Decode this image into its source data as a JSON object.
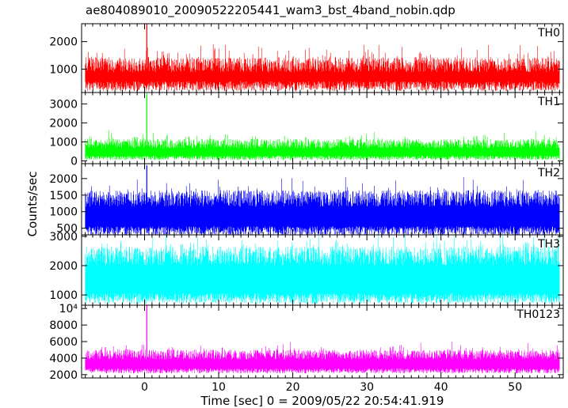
{
  "chart_data": {
    "type": "line",
    "title": "ae804089010_20090522205441_wam3_bst_4band_nobin.qdp",
    "xlabel": "Time [sec] 0 = 2009/05/22 20:54:41.919",
    "ylabel": "Counts/sec",
    "xlim": [
      -8.5,
      56.5
    ],
    "x_ticks": [
      0,
      10,
      20,
      30,
      40,
      50
    ],
    "x_tick_labels": [
      "0",
      "10",
      "20",
      "30",
      "40",
      "50"
    ],
    "panels": [
      {
        "name": "TH0",
        "color": "#ff0000",
        "ylim": [
          150,
          2650
        ],
        "y_ticks": [
          1000,
          2000
        ],
        "y_tick_labels": [
          "1000",
          "2000"
        ],
        "x_range": [
          -8.0,
          56.0
        ],
        "low_envelope": 380,
        "low_spread": 180,
        "high_envelope": 1050,
        "high_spread": 550,
        "spikes": [
          {
            "x": 0.3,
            "y": 2650
          }
        ]
      },
      {
        "name": "TH1",
        "color": "#00ff00",
        "ylim": [
          -150,
          3600
        ],
        "y_ticks": [
          0,
          1000,
          2000,
          3000
        ],
        "y_tick_labels": [
          "0",
          "1000",
          "2000",
          "3000"
        ],
        "x_range": [
          -8.0,
          56.0
        ],
        "low_envelope": 160,
        "low_spread": 120,
        "high_envelope": 800,
        "high_spread": 500,
        "spikes": [
          {
            "x": 0.3,
            "y": 3550
          }
        ]
      },
      {
        "name": "TH2",
        "color": "#0000ff",
        "ylim": [
          300,
          2450
        ],
        "y_ticks": [
          500,
          1000,
          1500,
          2000
        ],
        "y_tick_labels": [
          "500",
          "1000",
          "1500",
          "2000"
        ],
        "x_range": [
          -8.0,
          56.0
        ],
        "low_envelope": 420,
        "low_spread": 140,
        "high_envelope": 1300,
        "high_spread": 500,
        "spikes": [
          {
            "x": 0.3,
            "y": 2400
          }
        ]
      },
      {
        "name": "TH3",
        "color": "#00ffff",
        "ylim": [
          650,
          3050
        ],
        "y_ticks": [
          1000,
          2000,
          3000
        ],
        "y_tick_labels": [
          "1000",
          "2000",
          "3000"
        ],
        "x_range": [
          -8.0,
          56.0
        ],
        "low_envelope": 880,
        "low_spread": 180,
        "high_envelope": 2200,
        "high_spread": 650,
        "spikes": []
      },
      {
        "name": "TH0123",
        "color": "#ff00ff",
        "ylim": [
          1600,
          10400
        ],
        "y_ticks": [
          2000,
          4000,
          6000,
          8000,
          10000
        ],
        "y_tick_labels": [
          "2000",
          "4000",
          "6000",
          "8000",
          "10⁴"
        ],
        "x_range": [
          -8.0,
          56.0
        ],
        "low_envelope": 2450,
        "low_spread": 300,
        "high_envelope": 4200,
        "high_spread": 1200,
        "spikes": [
          {
            "x": 0.3,
            "y": 10400
          }
        ]
      }
    ]
  }
}
